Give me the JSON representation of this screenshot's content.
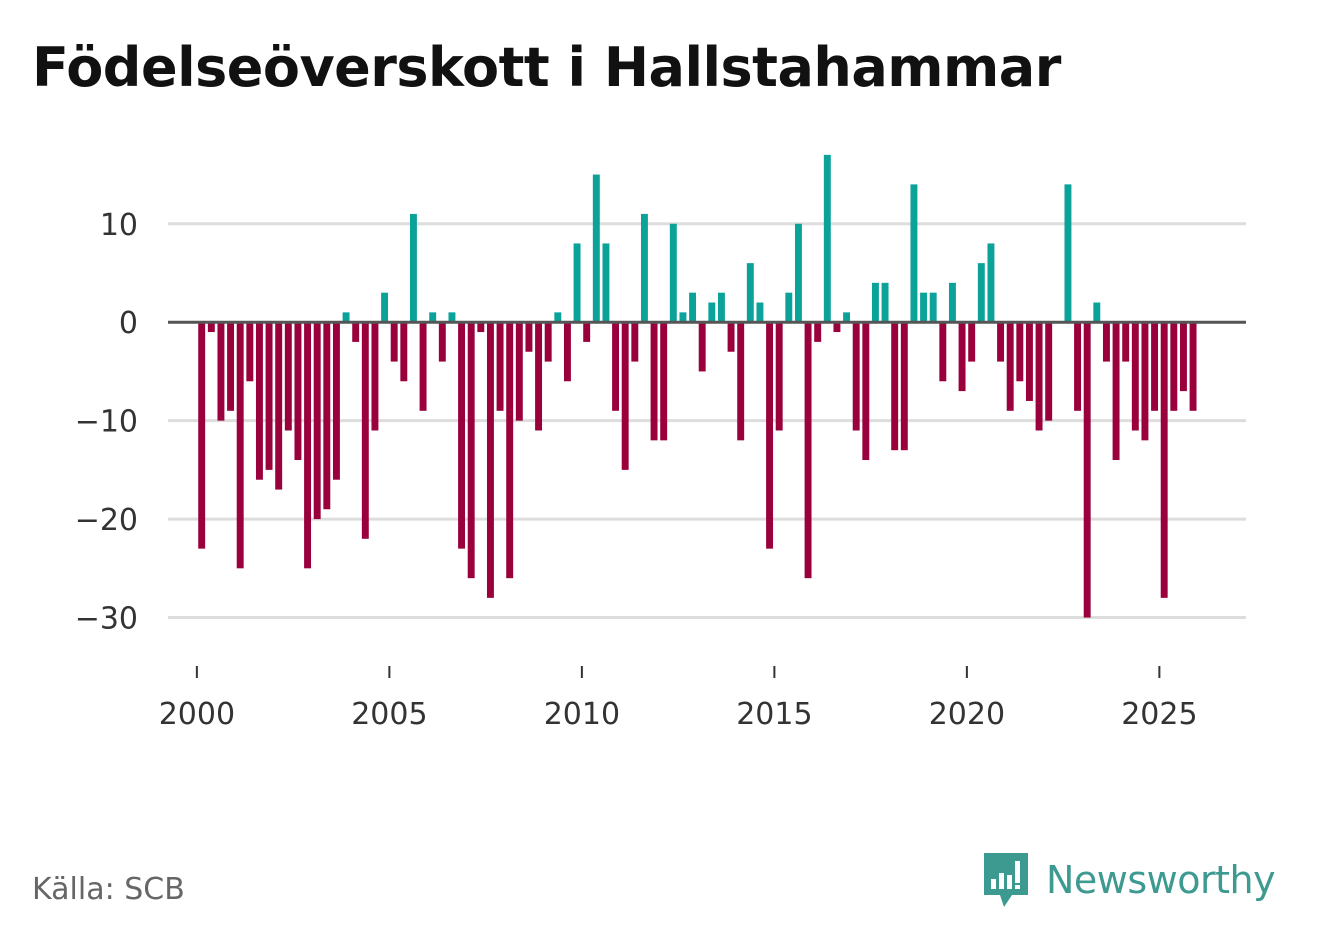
{
  "title": "Födelseöverskott i Hallstahammar",
  "source": "Källa: SCB",
  "brand": {
    "name": "Newsworthy",
    "icon": "newsworthy-logo-icon"
  },
  "colors": {
    "positive": "#0ba29a",
    "negative": "#99003c",
    "zero_line": "#555555",
    "grid": "#dddddd",
    "brand": "#3d9a91"
  },
  "chart_data": {
    "type": "bar",
    "title": "Födelseöverskott i Hallstahammar",
    "xlabel": "",
    "ylabel": "",
    "xlim": [
      1999.25,
      2027.25
    ],
    "ylim": [
      -33.5,
      18
    ],
    "grid": true,
    "yticks": [
      {
        "value": 10,
        "label": "10"
      },
      {
        "value": 0,
        "label": "0"
      },
      {
        "value": -10,
        "label": "−10"
      },
      {
        "value": -20,
        "label": "−20"
      },
      {
        "value": -30,
        "label": "−30"
      }
    ],
    "xticks": [
      {
        "value": 2000,
        "label": "2000"
      },
      {
        "value": 2005,
        "label": "2005"
      },
      {
        "value": 2010,
        "label": "2010"
      },
      {
        "value": 2015,
        "label": "2015"
      },
      {
        "value": 2020,
        "label": "2020"
      },
      {
        "value": 2025,
        "label": "2025"
      }
    ],
    "start_year": 2000,
    "periods_per_year": 4,
    "values": [
      -23,
      -1,
      -10,
      -9,
      -25,
      -6,
      -16,
      -15,
      -17,
      -11,
      -14,
      -25,
      -20,
      -19,
      -16,
      1,
      -2,
      -22,
      -11,
      3,
      -4,
      -6,
      11,
      -9,
      1,
      -4,
      1,
      -23,
      -26,
      -1,
      -28,
      -9,
      -26,
      -10,
      -3,
      -11,
      -4,
      1,
      -6,
      8,
      -2,
      15,
      8,
      -9,
      -15,
      -4,
      11,
      -12,
      -12,
      10,
      1,
      3,
      -5,
      2,
      3,
      -3,
      -12,
      6,
      2,
      -23,
      -11,
      3,
      10,
      -26,
      -2,
      17,
      -1,
      1,
      -11,
      -14,
      4,
      4,
      -13,
      -13,
      14,
      3,
      3,
      -6,
      4,
      -7,
      -4,
      6,
      8,
      -4,
      -9,
      -6,
      -8,
      -11,
      -10,
      0,
      14,
      -9,
      -30,
      2,
      -4,
      -14,
      -4,
      -11,
      -12,
      -9,
      -28,
      -9,
      -7,
      -9
    ]
  }
}
